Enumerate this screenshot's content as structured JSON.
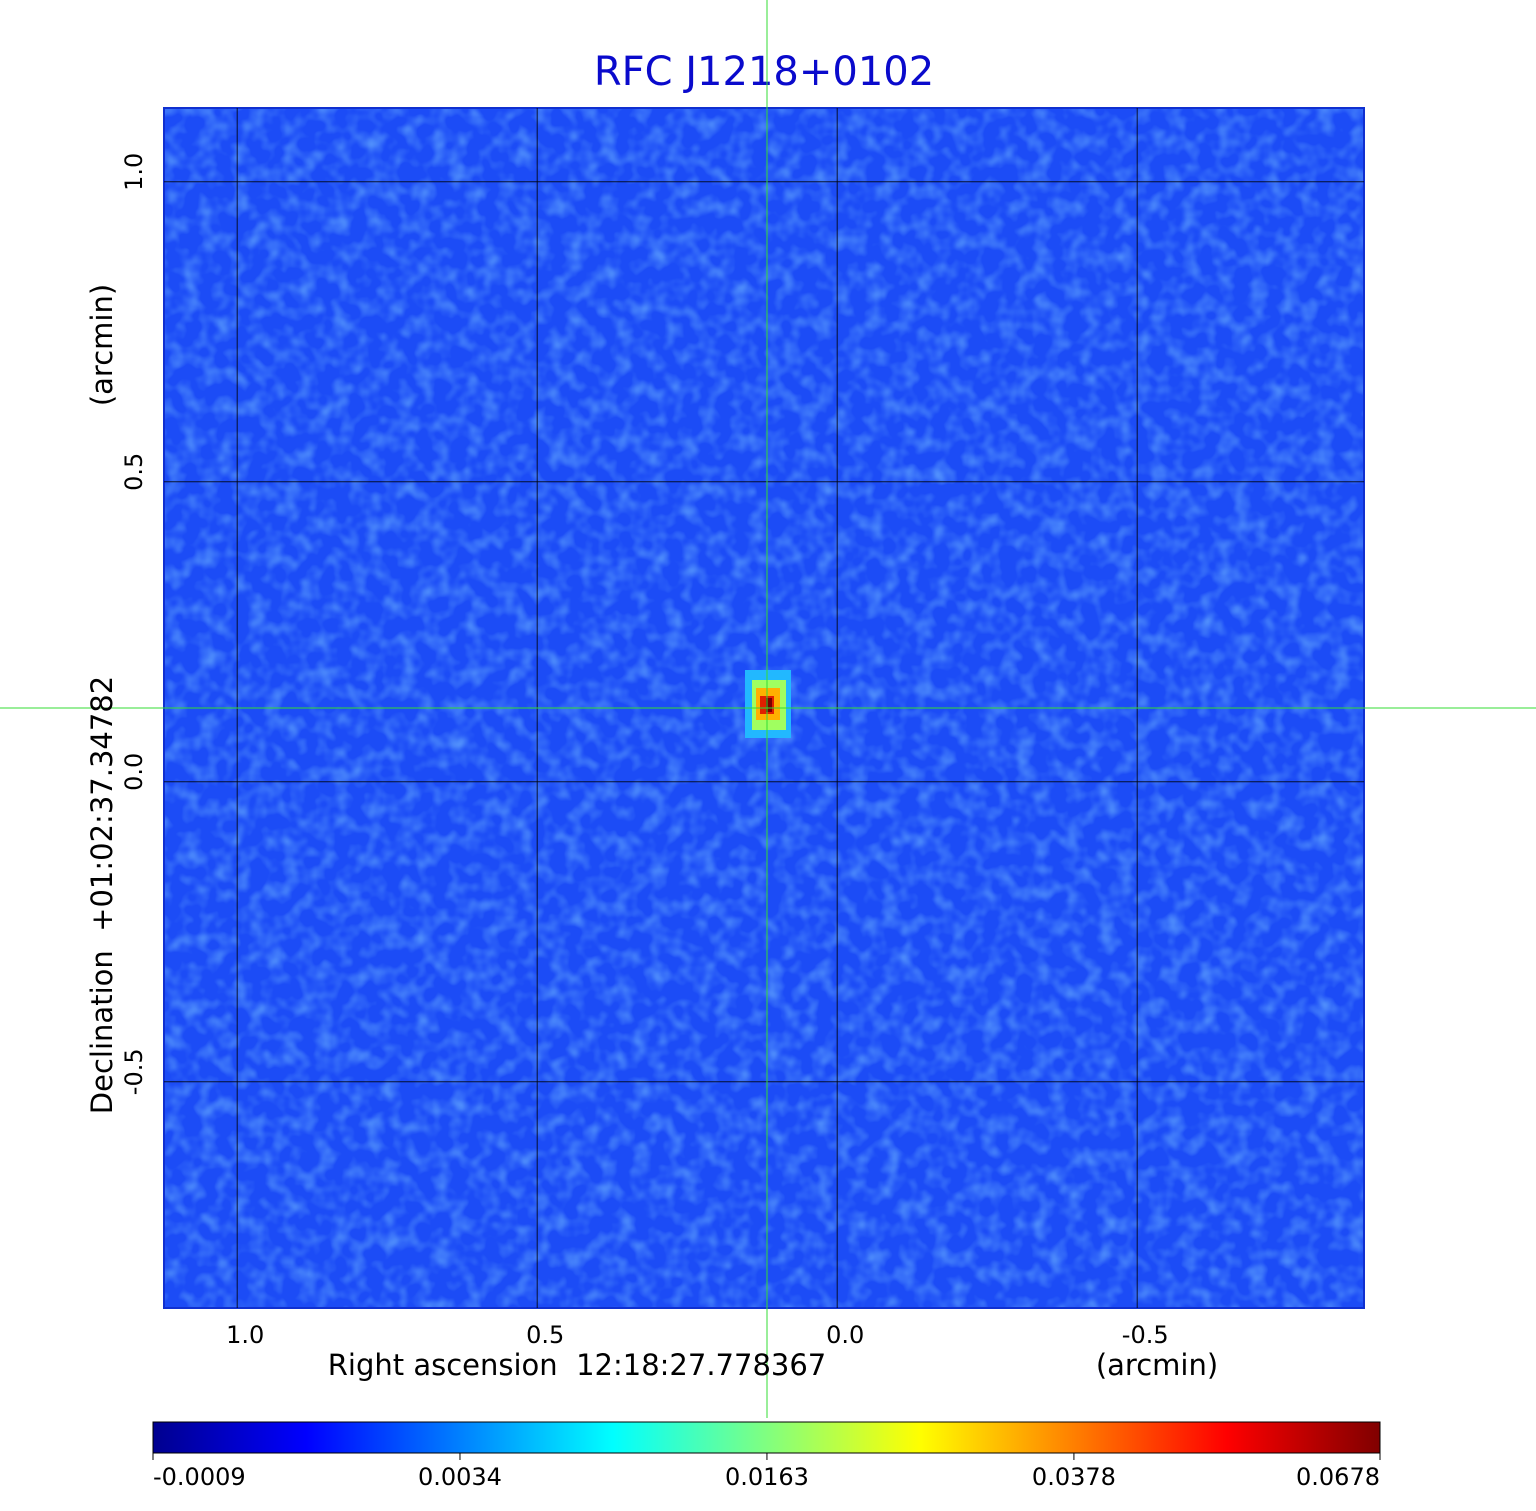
{
  "chart_data": {
    "type": "image",
    "title": "RFC J1218+0102",
    "xlabel": "Right ascension  12:18:27.778367",
    "xunit": "(arcmin)",
    "ylabel": "Declination  +01:02:37.34782",
    "yunit": "(arcmin)",
    "xlim": [
      1.122,
      -0.878
    ],
    "ylim": [
      -0.877,
      1.123
    ],
    "xticks": [
      {
        "value": 1,
        "label": "1.0"
      },
      {
        "value": 0.5,
        "label": "0.5"
      },
      {
        "value": 0,
        "label": "0.0"
      },
      {
        "value": -0.5,
        "label": "-0.5"
      }
    ],
    "yticks": [
      {
        "value": 1,
        "label": "1.0"
      },
      {
        "value": 0.5,
        "label": "0.5"
      },
      {
        "value": 0,
        "label": "0.0"
      },
      {
        "value": -0.5,
        "label": "-0.5"
      }
    ],
    "grid": true,
    "crosshair": [
      0.117,
      0.123
    ],
    "crosshair_color": "#33dd33",
    "colorbar": {
      "scale": "sqrt",
      "clim": [
        -0.0009,
        0.0678
      ],
      "ticks": [
        -0.0009,
        0.0034,
        0.0163,
        0.0378,
        0.0678
      ],
      "colormap": [
        "#00008f",
        "#0000ff",
        "#0080ff",
        "#00ffff",
        "#80ff80",
        "#ffff00",
        "#ff8000",
        "#ff0000",
        "#800000"
      ]
    }
  }
}
